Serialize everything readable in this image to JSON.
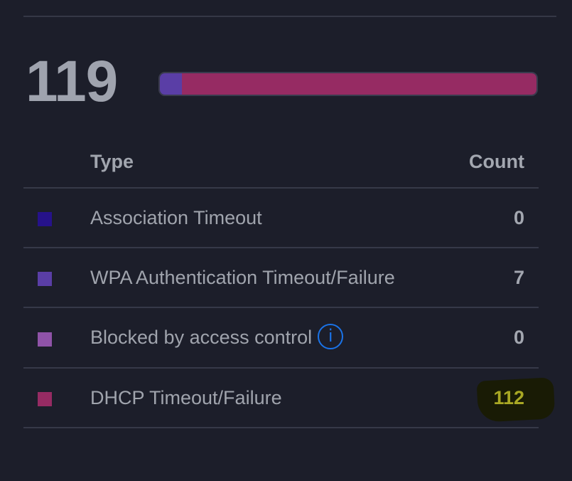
{
  "summary": {
    "total": "119"
  },
  "bar": {
    "segments": [
      {
        "name": "Association Timeout",
        "value": 0,
        "color": "#26128a"
      },
      {
        "name": "WPA Authentication Timeout/Failure",
        "value": 7,
        "color": "#5a3ea6"
      },
      {
        "name": "Blocked by access control",
        "value": 0,
        "color": "#8f53a8"
      },
      {
        "name": "DHCP Timeout/Failure",
        "value": 112,
        "color": "#962b63"
      }
    ]
  },
  "table": {
    "headers": {
      "type": "Type",
      "count": "Count"
    },
    "rows": [
      {
        "label": "Association Timeout",
        "count": "0",
        "color": "#26128a"
      },
      {
        "label": "WPA Authentication Timeout/Failure",
        "count": "7",
        "color": "#5a3ea6"
      },
      {
        "label": "Blocked by access control",
        "count": "0",
        "color": "#8f53a8",
        "info_icon": "info-icon",
        "info_glyph": "i"
      },
      {
        "label": "DHCP Timeout/Failure",
        "count": "112",
        "color": "#962b63"
      }
    ]
  }
}
